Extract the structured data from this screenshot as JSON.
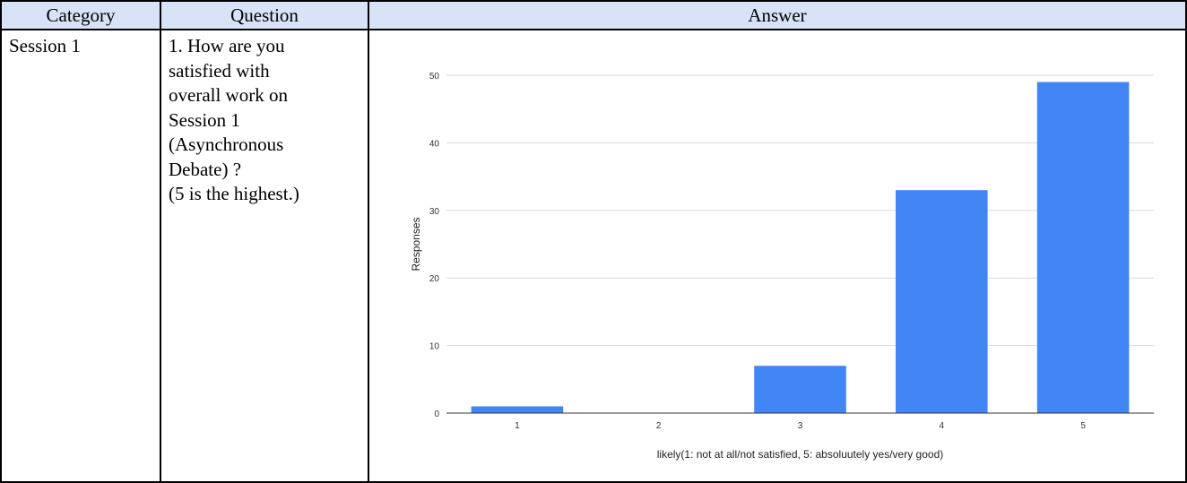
{
  "table": {
    "headers": [
      "Category",
      "Question",
      "Answer"
    ],
    "category": "Session 1",
    "question_lines": [
      "1. How are you",
      "satisfied with",
      "overall work on",
      "Session 1",
      "(Asynchronous",
      "Debate) ?",
      "(5 is the highest.)"
    ]
  },
  "chart_data": {
    "type": "bar",
    "categories": [
      "1",
      "2",
      "3",
      "4",
      "5"
    ],
    "values": [
      1,
      0,
      7,
      33,
      49
    ],
    "ylabel": "Responses",
    "xlabel": "likely(1: not at all/not satisfied, 5: absoluutely yes/very good)",
    "ylim": [
      0,
      50
    ],
    "yticks": [
      "0",
      "10",
      "20",
      "30",
      "40",
      "50"
    ],
    "grid": true,
    "bar_color": "#4285f4"
  }
}
